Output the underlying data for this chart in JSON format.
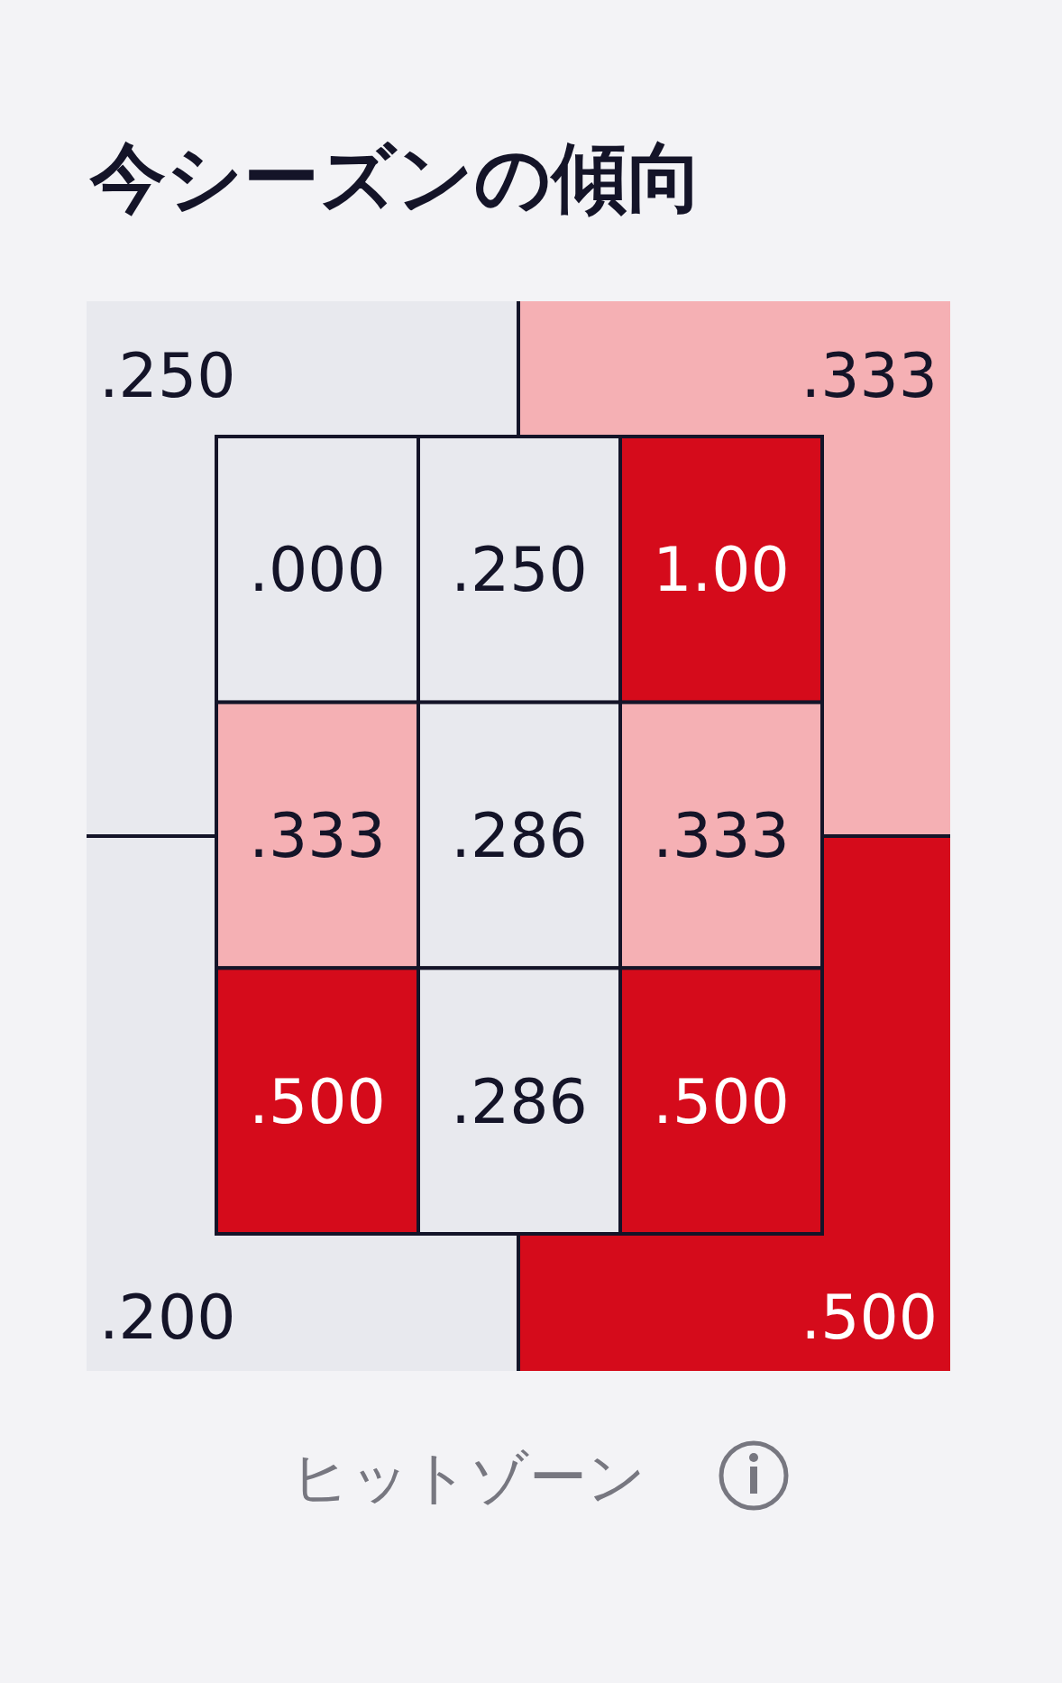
{
  "chart_data": [
    {
      "type": "heatmap",
      "title": "今シーズンの傾向",
      "categories": [
        null,
        null
      ],
      "y_categories": [
        null,
        null
      ],
      "cells": [
        [
          0.25,
          0.333
        ],
        [
          0.2,
          0.5
        ]
      ],
      "cell_labels": [
        [
          ".250",
          ".333"
        ],
        [
          ".200",
          ".500"
        ]
      ],
      "colors": [
        [
          "#e8e9ee",
          "#f5b0b4"
        ],
        [
          "#e8e9ee",
          "#d50b1b"
        ]
      ],
      "annotations": [
        "ヒットゾーン"
      ]
    },
    {
      "type": "heatmap",
      "categories": [
        null,
        null,
        null
      ],
      "y_categories": [
        null,
        null,
        null
      ],
      "cells": [
        [
          0,
          0.25,
          1
        ],
        [
          0.333,
          0.286,
          0.333
        ],
        [
          0.5,
          0.286,
          0.5
        ]
      ],
      "cell_labels": [
        [
          ".000",
          ".250",
          "1.00"
        ],
        [
          ".333",
          ".286",
          ".333"
        ],
        [
          ".500",
          ".286",
          ".500"
        ]
      ],
      "colors": [
        [
          "#e8e9ee",
          "#e8e9ee",
          "#d50b1b"
        ],
        [
          "#f5b0b4",
          "#e8e9ee",
          "#f5b0b4"
        ],
        [
          "#d50b1b",
          "#e8e9ee",
          "#d50b1b"
        ]
      ]
    }
  ]
}
